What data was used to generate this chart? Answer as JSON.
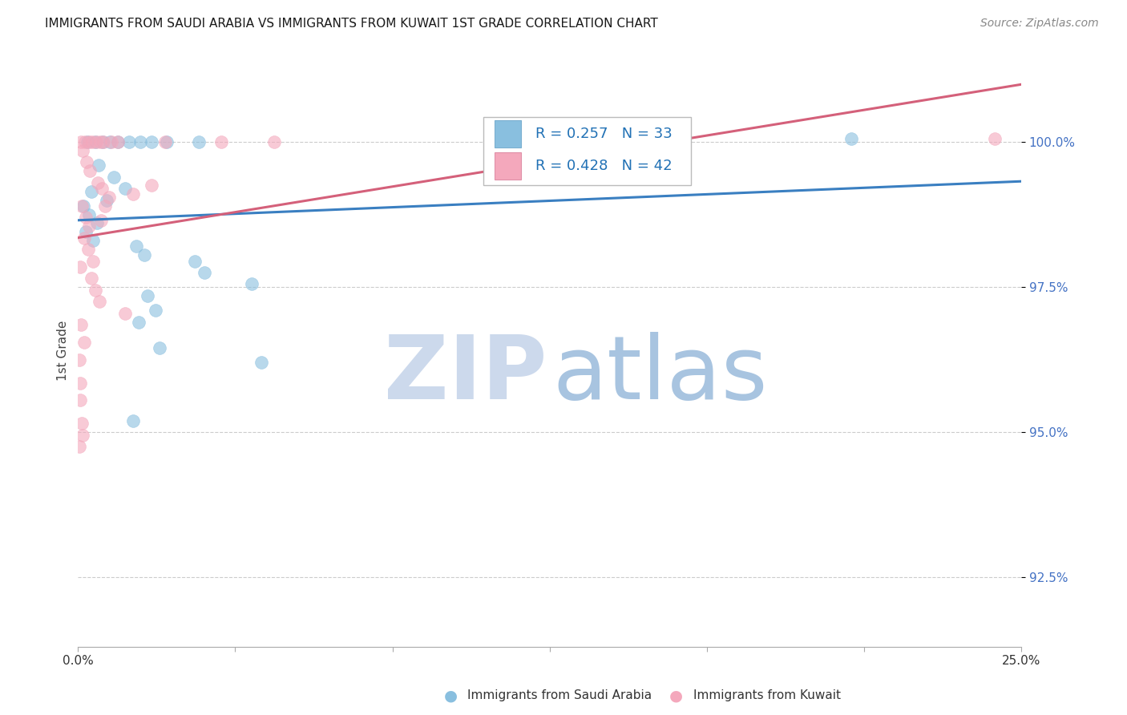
{
  "title": "IMMIGRANTS FROM SAUDI ARABIA VS IMMIGRANTS FROM KUWAIT 1ST GRADE CORRELATION CHART",
  "source": "Source: ZipAtlas.com",
  "ylabel": "1st Grade",
  "yticks": [
    100.0,
    97.5,
    95.0,
    92.5
  ],
  "ytick_labels": [
    "100.0%",
    "97.5%",
    "95.0%",
    "92.5%"
  ],
  "xlim": [
    0.0,
    25.0
  ],
  "ylim": [
    91.3,
    101.5
  ],
  "saudi_color": "#89bfdf",
  "kuwait_color": "#f4a8bc",
  "saudi_line_color": "#3a7fc1",
  "kuwait_line_color": "#d4607a",
  "saudi_r": "0.257",
  "saudi_n": "33",
  "kuwait_r": "0.428",
  "kuwait_n": "42",
  "saudi_scatter": [
    [
      0.25,
      100.0
    ],
    [
      0.45,
      100.0
    ],
    [
      0.65,
      100.0
    ],
    [
      0.85,
      100.0
    ],
    [
      1.05,
      100.0
    ],
    [
      1.35,
      100.0
    ],
    [
      1.65,
      100.0
    ],
    [
      1.95,
      100.0
    ],
    [
      2.35,
      100.0
    ],
    [
      3.2,
      100.0
    ],
    [
      0.55,
      99.6
    ],
    [
      0.95,
      99.4
    ],
    [
      1.25,
      99.2
    ],
    [
      0.35,
      99.15
    ],
    [
      0.75,
      99.0
    ],
    [
      0.15,
      98.9
    ],
    [
      0.3,
      98.75
    ],
    [
      0.5,
      98.6
    ],
    [
      0.2,
      98.45
    ],
    [
      0.4,
      98.3
    ],
    [
      1.55,
      98.2
    ],
    [
      1.75,
      98.05
    ],
    [
      3.1,
      97.95
    ],
    [
      3.35,
      97.75
    ],
    [
      4.6,
      97.55
    ],
    [
      1.85,
      97.35
    ],
    [
      2.05,
      97.1
    ],
    [
      1.6,
      96.9
    ],
    [
      2.15,
      96.45
    ],
    [
      4.85,
      96.2
    ],
    [
      1.45,
      95.2
    ],
    [
      12.5,
      99.55
    ],
    [
      20.5,
      100.05
    ]
  ],
  "kuwait_scatter": [
    [
      0.08,
      100.0
    ],
    [
      0.18,
      100.0
    ],
    [
      0.28,
      100.0
    ],
    [
      0.38,
      100.0
    ],
    [
      0.48,
      100.0
    ],
    [
      0.58,
      100.0
    ],
    [
      0.68,
      100.0
    ],
    [
      0.88,
      100.0
    ],
    [
      1.05,
      100.0
    ],
    [
      2.3,
      100.0
    ],
    [
      3.8,
      100.0
    ],
    [
      5.2,
      100.0
    ],
    [
      0.12,
      99.85
    ],
    [
      0.22,
      99.65
    ],
    [
      0.32,
      99.5
    ],
    [
      0.52,
      99.3
    ],
    [
      0.62,
      99.2
    ],
    [
      0.82,
      99.05
    ],
    [
      0.1,
      98.9
    ],
    [
      0.2,
      98.7
    ],
    [
      0.3,
      98.55
    ],
    [
      0.16,
      98.35
    ],
    [
      0.26,
      98.15
    ],
    [
      0.06,
      97.85
    ],
    [
      0.36,
      97.65
    ],
    [
      0.46,
      97.45
    ],
    [
      0.56,
      97.25
    ],
    [
      1.25,
      97.05
    ],
    [
      0.07,
      96.85
    ],
    [
      0.17,
      96.55
    ],
    [
      0.04,
      96.25
    ],
    [
      0.05,
      95.85
    ],
    [
      0.065,
      95.55
    ],
    [
      0.09,
      95.15
    ],
    [
      0.11,
      94.95
    ],
    [
      0.025,
      94.75
    ],
    [
      1.45,
      99.1
    ],
    [
      0.72,
      98.9
    ],
    [
      1.95,
      99.25
    ],
    [
      0.6,
      98.65
    ],
    [
      24.3,
      100.05
    ],
    [
      0.4,
      97.95
    ]
  ]
}
